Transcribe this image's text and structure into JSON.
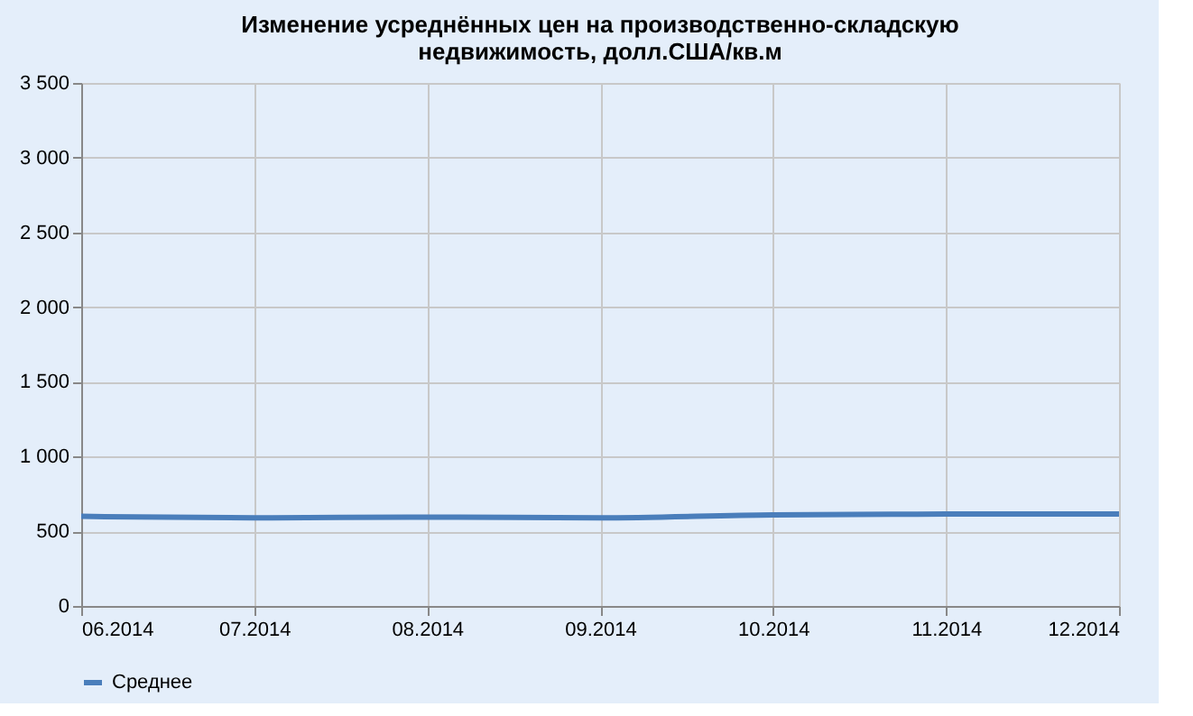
{
  "chart_data": {
    "type": "line",
    "title": [
      "Изменение усреднённых цен на производственно-складскую",
      "недвижимость, долл.США/кв.м"
    ],
    "categories": [
      "06.2014",
      "07.2014",
      "08.2014",
      "09.2014",
      "10.2014",
      "11.2014",
      "12.2014"
    ],
    "series": [
      {
        "name": "Среднее",
        "color": "#4a7ebb",
        "values": [
          600,
          590,
          595,
          590,
          610,
          615,
          615
        ]
      }
    ],
    "ylim": [
      0,
      3500
    ],
    "yticks": [
      {
        "value": 0,
        "label": "0"
      },
      {
        "value": 500,
        "label": "500"
      },
      {
        "value": 1000,
        "label": "1 000"
      },
      {
        "value": 1500,
        "label": "1 500"
      },
      {
        "value": 2000,
        "label": "2 000"
      },
      {
        "value": 2500,
        "label": "2 500"
      },
      {
        "value": 3000,
        "label": "3 000"
      },
      {
        "value": 3500,
        "label": "3 500"
      }
    ],
    "grid": true,
    "legend": "bottom",
    "marker": "none",
    "line_style": "solid"
  }
}
